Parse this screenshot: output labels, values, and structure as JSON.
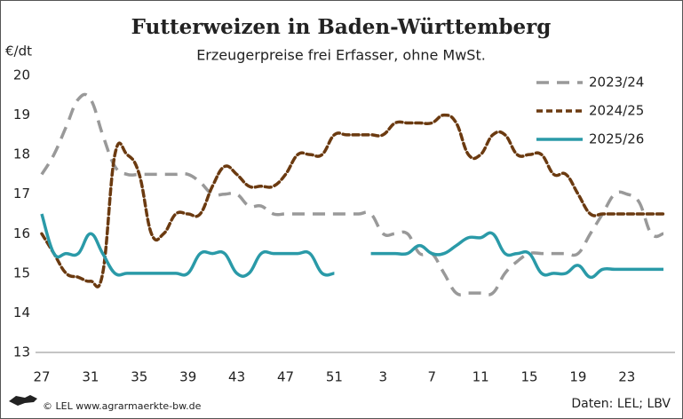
{
  "chart_data": {
    "type": "line",
    "title": "Futterweizen in Baden-Württemberg",
    "subtitle": "Erzeugerpreise frei Erfasser, ohne MwSt.",
    "y_label": "€/dt",
    "source": "Daten: LEL; LBV",
    "copyright": "© LEL www.agrarmaerkte-bw.de",
    "categories": [
      "27",
      null,
      null,
      null,
      "31",
      null,
      null,
      null,
      "35",
      null,
      null,
      null,
      "39",
      null,
      null,
      null,
      "43",
      null,
      null,
      null,
      "47",
      null,
      null,
      null,
      "51",
      null,
      null,
      null,
      "3",
      null,
      null,
      null,
      "7",
      null,
      null,
      null,
      "11",
      null,
      null,
      null,
      "15",
      null,
      null,
      null,
      "19",
      null,
      null,
      null,
      "23",
      null,
      null,
      null
    ],
    "ylim": [
      13,
      20
    ],
    "yticks": [
      13,
      14,
      15,
      16,
      17,
      18,
      19,
      20
    ],
    "legend": "top-right",
    "series": [
      {
        "name": "2023/24",
        "color": "#999999",
        "style": "dashed",
        "values": [
          17.5,
          18,
          18.7,
          19.4,
          19.4,
          18.5,
          17.7,
          17.5,
          17.5,
          17.5,
          17.5,
          17.5,
          17.5,
          17.3,
          17,
          17,
          17,
          16.7,
          16.7,
          16.5,
          16.5,
          16.5,
          16.5,
          16.5,
          16.5,
          16.5,
          16.5,
          16.5,
          16,
          16,
          16,
          15.5,
          15.5,
          15,
          14.5,
          14.5,
          14.5,
          14.5,
          15,
          15.3,
          15.5,
          15.5,
          15.5,
          15.5,
          15.5,
          16,
          16.5,
          17,
          17,
          16.8,
          16,
          16
        ]
      },
      {
        "name": "2024/25",
        "color": "#6b3a10",
        "style": "dotted",
        "values": [
          16,
          15.5,
          15,
          14.9,
          14.8,
          15,
          18,
          18,
          17.5,
          16,
          16,
          16.5,
          16.5,
          16.5,
          17.2,
          17.7,
          17.5,
          17.2,
          17.2,
          17.2,
          17.5,
          18,
          18,
          18,
          18.5,
          18.5,
          18.5,
          18.5,
          18.5,
          18.8,
          18.8,
          18.8,
          18.8,
          19,
          18.8,
          18,
          18,
          18.5,
          18.5,
          18,
          18,
          18,
          17.5,
          17.5,
          17,
          16.5,
          16.5,
          16.5,
          16.5,
          16.5,
          16.5,
          16.5
        ]
      },
      {
        "name": "2025/26",
        "color": "#2a9aa8",
        "style": "solid",
        "values": [
          16.5,
          15.5,
          15.5,
          15.5,
          16,
          15.5,
          15,
          15,
          15,
          15,
          15,
          15,
          15,
          15.5,
          15.5,
          15.5,
          15,
          15,
          15.5,
          15.5,
          15.5,
          15.5,
          15.5,
          15,
          15,
          null,
          null,
          15.5,
          15.5,
          15.5,
          15.5,
          15.7,
          15.5,
          15.5,
          15.7,
          15.9,
          15.9,
          16,
          15.5,
          15.5,
          15.5,
          15,
          15,
          15,
          15.2,
          14.9,
          15.1,
          15.1,
          15.1,
          15.1,
          15.1,
          15.1
        ]
      }
    ]
  }
}
